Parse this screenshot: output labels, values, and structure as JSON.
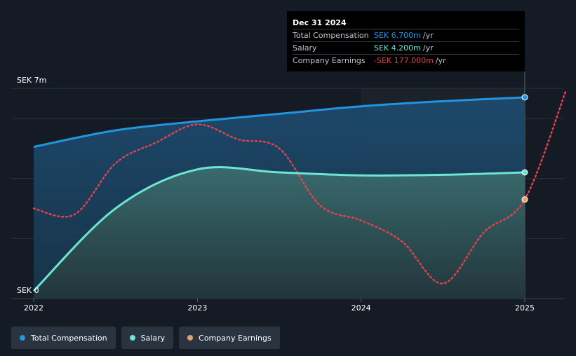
{
  "chart_data": {
    "type": "line",
    "currency": "SEK",
    "y_axis_labels": {
      "top": "SEK 7m",
      "bottom": "SEK 0"
    },
    "ylim": [
      0,
      7
    ],
    "x_ticks": [
      "2022",
      "2023",
      "2024",
      "2025"
    ],
    "series": [
      {
        "name": "Total Compensation",
        "color": "#2394df",
        "style": "area",
        "points": [
          [
            2022.0,
            5.05
          ],
          [
            2022.5,
            5.6
          ],
          [
            2023.0,
            5.9
          ],
          [
            2023.5,
            6.15
          ],
          [
            2024.0,
            6.4
          ],
          [
            2024.5,
            6.57
          ],
          [
            2025.0,
            6.7
          ]
        ]
      },
      {
        "name": "Salary",
        "color": "#6ce5d4",
        "style": "area",
        "points": [
          [
            2022.0,
            0.25
          ],
          [
            2022.5,
            3.0
          ],
          [
            2023.0,
            4.3
          ],
          [
            2023.5,
            4.2
          ],
          [
            2024.0,
            4.1
          ],
          [
            2024.5,
            4.12
          ],
          [
            2025.0,
            4.2
          ]
        ]
      },
      {
        "name": "Company Earnings",
        "color": "#e0434b",
        "style": "dotted",
        "marker_color": "#e8a364",
        "points": [
          [
            2022.0,
            3.0
          ],
          [
            2022.25,
            2.8
          ],
          [
            2022.5,
            4.5
          ],
          [
            2022.75,
            5.2
          ],
          [
            2023.0,
            5.8
          ],
          [
            2023.25,
            5.3
          ],
          [
            2023.5,
            5.0
          ],
          [
            2023.75,
            3.1
          ],
          [
            2024.0,
            2.6
          ],
          [
            2024.25,
            1.9
          ],
          [
            2024.5,
            0.5
          ],
          [
            2024.75,
            2.2
          ],
          [
            2025.0,
            3.3
          ],
          [
            2025.25,
            6.9
          ]
        ]
      }
    ],
    "highlight_x": 2025.0
  },
  "tooltip": {
    "date": "Dec 31 2024",
    "rows": [
      {
        "name": "Total Compensation",
        "value": "SEK 6.700m",
        "unit": "/yr",
        "color": "#2394df"
      },
      {
        "name": "Salary",
        "value": "SEK 4.200m",
        "unit": "/yr",
        "color": "#6ce5d4"
      },
      {
        "name": "Company Earnings",
        "value": "-SEK 177.000m",
        "unit": "/yr",
        "color": "#e0434b"
      }
    ]
  },
  "legend": [
    {
      "label": "Total Compensation",
      "color": "#2394df"
    },
    {
      "label": "Salary",
      "color": "#6ce5d4"
    },
    {
      "label": "Company Earnings",
      "color": "#e8a364"
    }
  ]
}
